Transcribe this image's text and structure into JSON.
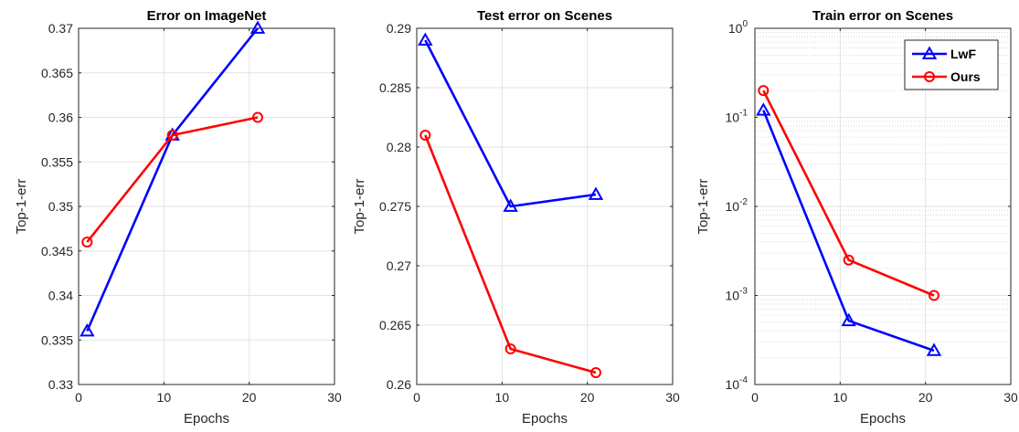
{
  "chart_data": [
    {
      "type": "line",
      "title": "Error on ImageNet",
      "xlabel": "Epochs",
      "ylabel": "Top-1-err",
      "xlim": [
        0,
        30
      ],
      "ylim": [
        0.33,
        0.37
      ],
      "x_ticks": [
        "0",
        "10",
        "20",
        "30"
      ],
      "y_ticks": [
        "0.33",
        "0.335",
        "0.34",
        "0.345",
        "0.35",
        "0.355",
        "0.36",
        "0.365",
        "0.37"
      ],
      "grid": true,
      "x": [
        1,
        11,
        21
      ],
      "series": [
        {
          "name": "LwF",
          "color": "#0000ff",
          "marker": "triangle",
          "values": [
            0.336,
            0.358,
            0.37
          ]
        },
        {
          "name": "Ours",
          "color": "#ff0000",
          "marker": "circle",
          "values": [
            0.346,
            0.358,
            0.36
          ]
        }
      ]
    },
    {
      "type": "line",
      "title": "Test error on Scenes",
      "xlabel": "Epochs",
      "ylabel": "Top-1-err",
      "xlim": [
        0,
        30
      ],
      "ylim": [
        0.26,
        0.29
      ],
      "x_ticks": [
        "0",
        "10",
        "20",
        "30"
      ],
      "y_ticks": [
        "0.26",
        "0.265",
        "0.27",
        "0.275",
        "0.28",
        "0.285",
        "0.29"
      ],
      "grid": true,
      "x": [
        1,
        11,
        21
      ],
      "series": [
        {
          "name": "LwF",
          "color": "#0000ff",
          "marker": "triangle",
          "values": [
            0.289,
            0.275,
            0.276
          ]
        },
        {
          "name": "Ours",
          "color": "#ff0000",
          "marker": "circle",
          "values": [
            0.281,
            0.263,
            0.261
          ]
        }
      ]
    },
    {
      "type": "line",
      "title": "Train error on Scenes",
      "xlabel": "Epochs",
      "ylabel": "Top-1-err",
      "xlim": [
        0,
        30
      ],
      "ylim": [
        0.0001,
        1
      ],
      "yscale": "log",
      "x_ticks": [
        "0",
        "10",
        "20",
        "30"
      ],
      "y_ticks": [
        {
          "base": "10",
          "exp": "-4"
        },
        {
          "base": "10",
          "exp": "-3"
        },
        {
          "base": "10",
          "exp": "-2"
        },
        {
          "base": "10",
          "exp": "-1"
        },
        {
          "base": "10",
          "exp": "0"
        }
      ],
      "grid": true,
      "legend_position": "top-right",
      "legend": [
        "LwF",
        "Ours"
      ],
      "x": [
        1,
        11,
        21
      ],
      "series": [
        {
          "name": "LwF",
          "color": "#0000ff",
          "marker": "triangle",
          "values": [
            0.12,
            0.00052,
            0.00024
          ]
        },
        {
          "name": "Ours",
          "color": "#ff0000",
          "marker": "circle",
          "values": [
            0.2,
            0.0025,
            0.001
          ]
        }
      ]
    }
  ]
}
